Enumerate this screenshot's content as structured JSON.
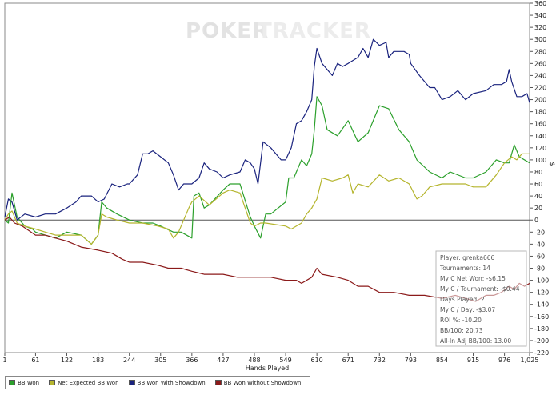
{
  "watermark": {
    "left": "POKER",
    "right": "TRACKER"
  },
  "chart_data": {
    "type": "line",
    "xlabel": "Hands Played",
    "ylabel": "$",
    "xlim": [
      1,
      1025
    ],
    "ylim": [
      -220,
      360
    ],
    "x_ticks": [
      "1",
      "61",
      "122",
      "183",
      "244",
      "305",
      "366",
      "427",
      "488",
      "549",
      "610",
      "671",
      "732",
      "793",
      "854",
      "915",
      "976",
      "1,025"
    ],
    "y_ticks": [
      "360",
      "340",
      "320",
      "300",
      "280",
      "260",
      "240",
      "220",
      "200",
      "180",
      "160",
      "140",
      "120",
      "100",
      "80",
      "60",
      "40",
      "20",
      "0",
      "-20",
      "-40",
      "-60",
      "-80",
      "-100",
      "-120",
      "-140",
      "-160",
      "-180",
      "-200",
      "-220"
    ],
    "series": [
      {
        "name": "BB Won",
        "color": "#2ca02c",
        "points": [
          [
            1,
            0
          ],
          [
            8,
            -5
          ],
          [
            15,
            45
          ],
          [
            25,
            5
          ],
          [
            40,
            -10
          ],
          [
            55,
            -15
          ],
          [
            61,
            -20
          ],
          [
            80,
            -25
          ],
          [
            100,
            -30
          ],
          [
            122,
            -20
          ],
          [
            150,
            -25
          ],
          [
            170,
            -40
          ],
          [
            183,
            -25
          ],
          [
            190,
            30
          ],
          [
            200,
            20
          ],
          [
            220,
            10
          ],
          [
            244,
            0
          ],
          [
            270,
            -5
          ],
          [
            290,
            -5
          ],
          [
            305,
            -10
          ],
          [
            330,
            -20
          ],
          [
            345,
            -20
          ],
          [
            366,
            -30
          ],
          [
            370,
            40
          ],
          [
            380,
            45
          ],
          [
            390,
            20
          ],
          [
            400,
            25
          ],
          [
            427,
            50
          ],
          [
            440,
            60
          ],
          [
            460,
            60
          ],
          [
            480,
            5
          ],
          [
            488,
            -10
          ],
          [
            500,
            -30
          ],
          [
            510,
            10
          ],
          [
            520,
            10
          ],
          [
            549,
            30
          ],
          [
            555,
            70
          ],
          [
            565,
            70
          ],
          [
            580,
            100
          ],
          [
            590,
            90
          ],
          [
            600,
            110
          ],
          [
            605,
            150
          ],
          [
            610,
            205
          ],
          [
            620,
            190
          ],
          [
            630,
            150
          ],
          [
            650,
            140
          ],
          [
            671,
            165
          ],
          [
            690,
            130
          ],
          [
            710,
            145
          ],
          [
            732,
            190
          ],
          [
            750,
            185
          ],
          [
            770,
            150
          ],
          [
            790,
            130
          ],
          [
            805,
            100
          ],
          [
            830,
            80
          ],
          [
            854,
            70
          ],
          [
            870,
            80
          ],
          [
            900,
            70
          ],
          [
            915,
            70
          ],
          [
            940,
            80
          ],
          [
            960,
            100
          ],
          [
            976,
            95
          ],
          [
            985,
            95
          ],
          [
            995,
            125
          ],
          [
            1005,
            105
          ],
          [
            1025,
            95
          ]
        ]
      },
      {
        "name": "Net Expected BB Won",
        "color": "#b5b52e",
        "points": [
          [
            1,
            0
          ],
          [
            8,
            10
          ],
          [
            15,
            15
          ],
          [
            25,
            -5
          ],
          [
            40,
            -10
          ],
          [
            61,
            -15
          ],
          [
            80,
            -20
          ],
          [
            100,
            -25
          ],
          [
            122,
            -25
          ],
          [
            150,
            -25
          ],
          [
            170,
            -40
          ],
          [
            183,
            -25
          ],
          [
            190,
            10
          ],
          [
            200,
            5
          ],
          [
            220,
            0
          ],
          [
            244,
            -5
          ],
          [
            270,
            -5
          ],
          [
            300,
            -10
          ],
          [
            320,
            -15
          ],
          [
            330,
            -30
          ],
          [
            340,
            -20
          ],
          [
            360,
            20
          ],
          [
            366,
            30
          ],
          [
            380,
            40
          ],
          [
            400,
            25
          ],
          [
            427,
            45
          ],
          [
            440,
            50
          ],
          [
            460,
            45
          ],
          [
            480,
            -5
          ],
          [
            488,
            -10
          ],
          [
            500,
            -5
          ],
          [
            510,
            -5
          ],
          [
            549,
            -10
          ],
          [
            560,
            -15
          ],
          [
            580,
            -5
          ],
          [
            590,
            10
          ],
          [
            600,
            20
          ],
          [
            610,
            35
          ],
          [
            620,
            70
          ],
          [
            640,
            65
          ],
          [
            660,
            70
          ],
          [
            671,
            75
          ],
          [
            680,
            45
          ],
          [
            690,
            60
          ],
          [
            710,
            55
          ],
          [
            732,
            75
          ],
          [
            750,
            65
          ],
          [
            770,
            70
          ],
          [
            790,
            60
          ],
          [
            805,
            35
          ],
          [
            815,
            40
          ],
          [
            830,
            55
          ],
          [
            854,
            60
          ],
          [
            870,
            60
          ],
          [
            900,
            60
          ],
          [
            915,
            55
          ],
          [
            940,
            55
          ],
          [
            960,
            75
          ],
          [
            976,
            95
          ],
          [
            990,
            105
          ],
          [
            1000,
            100
          ],
          [
            1010,
            110
          ],
          [
            1025,
            110
          ]
        ]
      },
      {
        "name": "BB Won With Showdown",
        "color": "#1a237e",
        "points": [
          [
            1,
            5
          ],
          [
            8,
            35
          ],
          [
            15,
            30
          ],
          [
            25,
            0
          ],
          [
            40,
            10
          ],
          [
            61,
            5
          ],
          [
            80,
            10
          ],
          [
            100,
            10
          ],
          [
            122,
            20
          ],
          [
            140,
            30
          ],
          [
            150,
            40
          ],
          [
            170,
            40
          ],
          [
            183,
            30
          ],
          [
            195,
            35
          ],
          [
            210,
            60
          ],
          [
            225,
            55
          ],
          [
            240,
            60
          ],
          [
            244,
            60
          ],
          [
            260,
            75
          ],
          [
            270,
            110
          ],
          [
            280,
            110
          ],
          [
            290,
            115
          ],
          [
            305,
            105
          ],
          [
            320,
            95
          ],
          [
            330,
            75
          ],
          [
            340,
            50
          ],
          [
            350,
            60
          ],
          [
            366,
            60
          ],
          [
            380,
            70
          ],
          [
            390,
            95
          ],
          [
            400,
            85
          ],
          [
            415,
            80
          ],
          [
            427,
            70
          ],
          [
            440,
            75
          ],
          [
            460,
            80
          ],
          [
            470,
            100
          ],
          [
            480,
            95
          ],
          [
            488,
            85
          ],
          [
            495,
            60
          ],
          [
            505,
            130
          ],
          [
            520,
            120
          ],
          [
            540,
            100
          ],
          [
            549,
            100
          ],
          [
            560,
            120
          ],
          [
            570,
            160
          ],
          [
            580,
            165
          ],
          [
            590,
            180
          ],
          [
            600,
            200
          ],
          [
            605,
            255
          ],
          [
            610,
            285
          ],
          [
            620,
            260
          ],
          [
            640,
            240
          ],
          [
            650,
            260
          ],
          [
            660,
            255
          ],
          [
            671,
            260
          ],
          [
            690,
            270
          ],
          [
            700,
            285
          ],
          [
            710,
            270
          ],
          [
            720,
            300
          ],
          [
            732,
            290
          ],
          [
            745,
            295
          ],
          [
            750,
            270
          ],
          [
            760,
            280
          ],
          [
            780,
            280
          ],
          [
            790,
            275
          ],
          [
            793,
            260
          ],
          [
            810,
            240
          ],
          [
            830,
            220
          ],
          [
            840,
            220
          ],
          [
            854,
            200
          ],
          [
            870,
            205
          ],
          [
            885,
            215
          ],
          [
            900,
            200
          ],
          [
            915,
            210
          ],
          [
            940,
            215
          ],
          [
            955,
            225
          ],
          [
            970,
            225
          ],
          [
            980,
            230
          ],
          [
            985,
            250
          ],
          [
            990,
            230
          ],
          [
            1000,
            205
          ],
          [
            1010,
            205
          ],
          [
            1020,
            210
          ],
          [
            1025,
            195
          ]
        ]
      },
      {
        "name": "BB Won Without Showdown",
        "color": "#8b1a1a",
        "points": [
          [
            1,
            0
          ],
          [
            10,
            5
          ],
          [
            20,
            -5
          ],
          [
            35,
            -10
          ],
          [
            61,
            -25
          ],
          [
            80,
            -25
          ],
          [
            100,
            -30
          ],
          [
            122,
            -35
          ],
          [
            150,
            -45
          ],
          [
            183,
            -50
          ],
          [
            210,
            -55
          ],
          [
            230,
            -65
          ],
          [
            244,
            -70
          ],
          [
            270,
            -70
          ],
          [
            300,
            -75
          ],
          [
            320,
            -80
          ],
          [
            345,
            -80
          ],
          [
            366,
            -85
          ],
          [
            390,
            -90
          ],
          [
            427,
            -90
          ],
          [
            455,
            -95
          ],
          [
            488,
            -95
          ],
          [
            520,
            -95
          ],
          [
            549,
            -100
          ],
          [
            570,
            -100
          ],
          [
            580,
            -105
          ],
          [
            600,
            -95
          ],
          [
            610,
            -80
          ],
          [
            620,
            -90
          ],
          [
            650,
            -95
          ],
          [
            671,
            -100
          ],
          [
            690,
            -110
          ],
          [
            710,
            -110
          ],
          [
            732,
            -120
          ],
          [
            760,
            -120
          ],
          [
            790,
            -125
          ],
          [
            820,
            -125
          ],
          [
            854,
            -130
          ],
          [
            880,
            -125
          ],
          [
            900,
            -130
          ],
          [
            920,
            -135
          ],
          [
            940,
            -125
          ],
          [
            955,
            -125
          ],
          [
            970,
            -120
          ],
          [
            985,
            -110
          ],
          [
            995,
            -115
          ],
          [
            1005,
            -105
          ],
          [
            1015,
            -110
          ],
          [
            1025,
            -105
          ]
        ]
      }
    ],
    "legend_position": "bottom-left",
    "grid": false,
    "zero_line": true,
    "annotations": [
      "Player: grenka666",
      "Tournaments: 14",
      "My C Net Won: -$6.15",
      "My C / Tournament: -$0.44",
      "Days Played: 2",
      "My C / Day: -$3.07",
      "ROI %: -10.20",
      "BB/100: 20.73",
      "All-In Adj BB/100: 13.00"
    ]
  }
}
